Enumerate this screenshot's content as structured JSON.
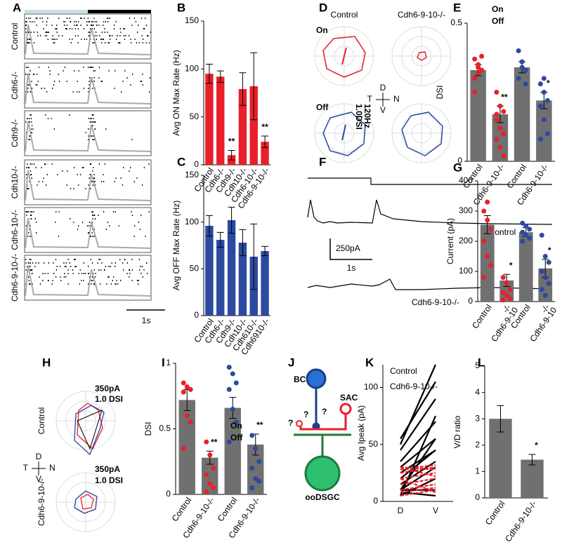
{
  "figure": {
    "panels": [
      "A",
      "B",
      "C",
      "D",
      "E",
      "F",
      "G",
      "H",
      "I",
      "J",
      "K",
      "L"
    ],
    "a_rows": [
      "Control",
      "Cdh6-/-",
      "Cdh9-/-",
      "Cdh10-/-",
      "Cdh6-10-/-",
      "Cdh6-9-10-/-"
    ],
    "a_scale": "1s",
    "d_texts": {
      "control": "Control",
      "ko": "Cdh6-9-10-/-",
      "on": "On",
      "off": "Off",
      "rate": "120Hz",
      "dsi": "1.0DSI"
    },
    "compass": {
      "d": "D",
      "t": "T",
      "n": "N",
      "v": "V"
    },
    "f_texts": {
      "control": "Control",
      "amp": "250pA",
      "time": "1s",
      "ko": "Cdh6-9-10-/-"
    },
    "h_texts": {
      "control": "Control",
      "ko": "Cdh6-9-10-/-",
      "amp": "350pA",
      "dsi": "1.0 DSI"
    },
    "j_texts": {
      "bc": "BC",
      "sac": "SAC",
      "dsgc": "ooDSGC",
      "q": "?"
    }
  },
  "chart_data": [
    {
      "type": "bar",
      "ylabel": "Avg ON Max Rate (Hz)",
      "categories": [
        "Control",
        "Cdh6-/-",
        "Cdh9-/-",
        "Cdh10-/-",
        "Cdh6-10-/-",
        "Cdh6-9-10-/-"
      ],
      "values": [
        95,
        92,
        10,
        79,
        82,
        24
      ],
      "errors": [
        10,
        6,
        5,
        17,
        35,
        6
      ],
      "color": "#e8202a",
      "significance": [
        null,
        null,
        "**",
        null,
        null,
        "**"
      ],
      "ylim": [
        0,
        150
      ],
      "yticks": [
        0,
        50,
        100,
        150
      ]
    },
    {
      "type": "bar",
      "ylabel": "Avg OFF Max Rate (Hz)",
      "categories": [
        "Control",
        "Cdh6-/-",
        "Cdh9-/-",
        "Cdh10-/-",
        "Cdh610-/-",
        "Cdh6910-/-"
      ],
      "values": [
        96,
        81,
        102,
        78,
        63,
        69
      ],
      "errors": [
        11,
        8,
        14,
        14,
        35,
        5
      ],
      "color": "#2b4aa0",
      "ylim": [
        0,
        150
      ],
      "yticks": [
        0,
        50,
        100,
        150
      ]
    },
    {
      "type": "bar",
      "ylabel": "DSI",
      "categories": [
        "Control",
        "Cdh6-9-10-/-",
        "Control",
        "Cdh6-9-10-/-"
      ],
      "values": [
        0.33,
        0.17,
        0.34,
        0.22
      ],
      "errors": [
        0.02,
        0.03,
        0.02,
        0.03
      ],
      "color": "#707070",
      "point_colors": [
        "#e8202a",
        "#e8202a",
        "#2b4aa0",
        "#2b4aa0"
      ],
      "points": [
        [
          0.37,
          0.35,
          0.33,
          0.3,
          0.32,
          0.38,
          0.25,
          0.34
        ],
        [
          0.25,
          0.2,
          0.18,
          0.15,
          0.12,
          0.1,
          0.08,
          0.05,
          0.02,
          0.17
        ],
        [
          0.4,
          0.36,
          0.33,
          0.3,
          0.34,
          0.28
        ],
        [
          0.28,
          0.25,
          0.22,
          0.2,
          0.15,
          0.1,
          0.08,
          0.3
        ]
      ],
      "significance": [
        null,
        "**",
        null,
        "*"
      ],
      "legend": [
        {
          "name": "On",
          "color": "#e8202a"
        },
        {
          "name": "Off",
          "color": "#2b4aa0"
        }
      ],
      "ylim": [
        0,
        0.5
      ],
      "yticks": [
        0,
        0.5
      ]
    },
    {
      "type": "bar",
      "ylabel": "Current (pA)",
      "categories": [
        "Control",
        "-/-",
        "Control",
        "-/-"
      ],
      "sublabels": [
        null,
        "Cdh6-9-10",
        null,
        "Cdh6-9-10"
      ],
      "values": [
        255,
        70,
        230,
        110
      ],
      "errors": [
        30,
        20,
        15,
        30
      ],
      "color": "#707070",
      "point_colors": [
        "#e8202a",
        "#e8202a",
        "#2b4aa0",
        "#2b4aa0"
      ],
      "points": [
        [
          300,
          270,
          240,
          200,
          150,
          120,
          80,
          330
        ],
        [
          80,
          60,
          40,
          30,
          20,
          10,
          5
        ],
        [
          260,
          250,
          240,
          230,
          220,
          210,
          200
        ],
        [
          220,
          150,
          130,
          100,
          80,
          60,
          40,
          20
        ]
      ],
      "significance": [
        null,
        "*",
        null,
        "*"
      ],
      "ylim": [
        0,
        400
      ],
      "yticks": [
        0,
        100,
        200,
        300,
        400
      ]
    },
    {
      "type": "bar",
      "ylabel": "DSI",
      "categories": [
        "Control",
        "Cdh6-9-10-/-",
        "Control",
        "Cdh6-9-10-/-"
      ],
      "values": [
        0.72,
        0.28,
        0.66,
        0.38
      ],
      "errors": [
        0.08,
        0.05,
        0.08,
        0.08
      ],
      "color": "#707070",
      "point_colors": [
        "#e8202a",
        "#e8202a",
        "#2b4aa0",
        "#2b4aa0"
      ],
      "points": [
        [
          0.85,
          0.82,
          0.8,
          0.78,
          0.6,
          0.55,
          0.35
        ],
        [
          0.4,
          0.3,
          0.2,
          0.15,
          0.08,
          0.05,
          0.02
        ],
        [
          0.97,
          0.92,
          0.85,
          0.8,
          0.65,
          0.55,
          0.4
        ],
        [
          0.45,
          0.35,
          0.25,
          0.2,
          0.12,
          0.1,
          0.05
        ]
      ],
      "significance": [
        null,
        "**",
        null,
        "**"
      ],
      "legend": [
        {
          "name": "On",
          "color": "#e8202a"
        },
        {
          "name": "Off",
          "color": "#2b4aa0"
        }
      ],
      "ylim": [
        0,
        1
      ],
      "yticks": [
        0,
        0.5,
        1
      ]
    },
    {
      "type": "bar",
      "ylabel": "V/D ratio",
      "categories": [
        "Control",
        "Cdh6-9-10-/-"
      ],
      "values": [
        3.0,
        1.45
      ],
      "errors": [
        0.5,
        0.2
      ],
      "color": "#707070",
      "significance": [
        null,
        "*"
      ],
      "ylim": [
        0,
        5
      ],
      "yticks": [
        0,
        1,
        2,
        3,
        4,
        5
      ]
    },
    {
      "type": "pairs",
      "ylabel": "Avg Ipeak (pA)",
      "categories": [
        "D",
        "V"
      ],
      "groups": [
        {
          "name": "Control",
          "color": "#000000",
          "lines": [
            [
              5,
              75
            ],
            [
              10,
              55
            ],
            [
              20,
              45
            ],
            [
              50,
              120
            ],
            [
              55,
              105
            ],
            [
              45,
              90
            ],
            [
              35,
              70
            ],
            [
              30,
              55
            ],
            [
              25,
              45
            ],
            [
              15,
              35
            ],
            [
              10,
              30
            ],
            [
              5,
              20
            ],
            [
              10,
              10
            ],
            [
              8,
              5
            ]
          ]
        },
        {
          "name": "Cdh6-9-10-/-",
          "color": "#e8202a",
          "lines": [
            [
              25,
              30
            ],
            [
              28,
              32
            ],
            [
              30,
              28
            ],
            [
              20,
              25
            ],
            [
              15,
              20
            ],
            [
              10,
              15
            ],
            [
              8,
              12
            ],
            [
              5,
              10
            ],
            [
              30,
              22
            ],
            [
              20,
              8
            ]
          ]
        }
      ],
      "ylim": [
        0,
        120
      ],
      "yticks": [
        0,
        50,
        100
      ]
    }
  ]
}
